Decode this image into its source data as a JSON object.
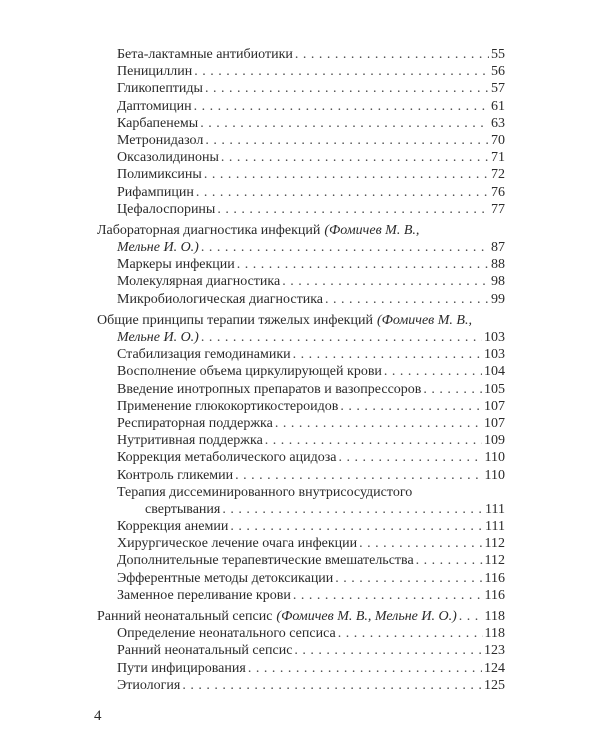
{
  "toc": {
    "groups": [
      {
        "entries": [
          {
            "level": 2,
            "text": "Бета-лактамные антибиотики",
            "page": "55"
          },
          {
            "level": 2,
            "text": "Пенициллин",
            "page": "56"
          },
          {
            "level": 2,
            "text": "Гликопептиды",
            "page": "57"
          },
          {
            "level": 2,
            "text": "Даптомицин",
            "page": "61"
          },
          {
            "level": 2,
            "text": "Карбапенемы",
            "page": "63"
          },
          {
            "level": 2,
            "text": "Метронидазол",
            "page": "70"
          },
          {
            "level": 2,
            "text": "Оксазолидиноны",
            "page": "71"
          },
          {
            "level": 2,
            "text": "Полимиксины",
            "page": "72"
          },
          {
            "level": 2,
            "text": "Рифампицин",
            "page": "76"
          },
          {
            "level": 2,
            "text": "Цефалоспорины",
            "page": "77"
          }
        ]
      },
      {
        "entries": [
          {
            "level": 1,
            "text": "Лабораторная диагностика инфекций",
            "author": "(Фомичев М. В.,",
            "cont_author": "Мельне И. О.)",
            "page": "87"
          },
          {
            "level": 2,
            "text": "Маркеры инфекции",
            "page": "88"
          },
          {
            "level": 2,
            "text": "Молекулярная диагностика",
            "page": "98"
          },
          {
            "level": 2,
            "text": "Микробиологическая диагностика",
            "page": "99"
          }
        ]
      },
      {
        "entries": [
          {
            "level": 1,
            "text": "Общие принципы терапии тяжелых инфекций",
            "author": "(Фомичев М. В.,",
            "cont_author": "Мельне И. О.)",
            "page": "103"
          },
          {
            "level": 2,
            "text": "Стабилизация гемодинамики",
            "page": "103"
          },
          {
            "level": 2,
            "text": "Восполнение объема циркулирующей крови",
            "page": "104"
          },
          {
            "level": 2,
            "text": "Введение инотропных препаратов и вазопрессоров",
            "page": "105"
          },
          {
            "level": 2,
            "text": "Применение глюкокортикостероидов",
            "page": "107"
          },
          {
            "level": 2,
            "text": "Респираторная поддержка",
            "page": "107"
          },
          {
            "level": 2,
            "text": "Нутритивная поддержка",
            "page": "109"
          },
          {
            "level": 2,
            "text": "Коррекция метаболического ацидоза",
            "page": "110"
          },
          {
            "level": 2,
            "text": "Контроль гликемии",
            "page": "110"
          },
          {
            "level": 2,
            "text": "Терапия диссеминированного внутрисосудистого",
            "cont": "свертывания",
            "page": "111"
          },
          {
            "level": 2,
            "text": "Коррекция анемии",
            "page": "111"
          },
          {
            "level": 2,
            "text": "Хирургическое лечение очага инфекции",
            "page": "112"
          },
          {
            "level": 2,
            "text": "Дополнительные терапевтические вмешательства",
            "page": "112"
          },
          {
            "level": 2,
            "text": "Эфферентные методы детоксикации",
            "page": "116"
          },
          {
            "level": 2,
            "text": "Заменное переливание крови",
            "page": "116"
          }
        ]
      },
      {
        "entries": [
          {
            "level": 1,
            "text": "Ранний неонатальный сепсис",
            "author": "(Фомичев М. В., Мельне И. О.)",
            "page": "118"
          },
          {
            "level": 2,
            "text": "Определение неонатального сепсиса",
            "page": "118"
          },
          {
            "level": 2,
            "text": "Ранний неонатальный сепсис",
            "page": "123"
          },
          {
            "level": 2,
            "text": "Пути инфицирования",
            "page": "124"
          },
          {
            "level": 2,
            "text": "Этиология",
            "page": "125"
          }
        ]
      }
    ]
  },
  "page_number": "4"
}
